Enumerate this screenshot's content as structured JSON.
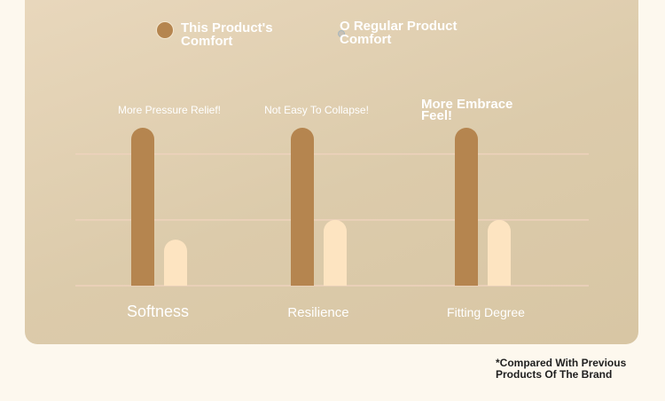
{
  "legend": {
    "series_a": "This Product's Comfort",
    "series_b": "O Regular Product Comfort"
  },
  "footnote": "*Compared With Previous Products Of The Brand",
  "colors": {
    "series_a": "#b5854f",
    "series_b": "#fde4c1",
    "gridline": "#eed2bd",
    "label": "#ffffff"
  },
  "chart_data": {
    "type": "bar",
    "categories": [
      "Softness",
      "Resilience",
      "Fitting Degree"
    ],
    "annotations": [
      "More Pressure Relief!",
      "Not Easy To Collapse!",
      "More Embrace Feel!"
    ],
    "series": [
      {
        "name": "This Product's Comfort",
        "values": [
          2.4,
          2.4,
          2.4
        ]
      },
      {
        "name": "Regular Product Comfort",
        "values": [
          0.7,
          1.0,
          1.0
        ]
      }
    ],
    "ylim": [
      0,
      2.4
    ],
    "grid": true,
    "legend_position": "top"
  }
}
